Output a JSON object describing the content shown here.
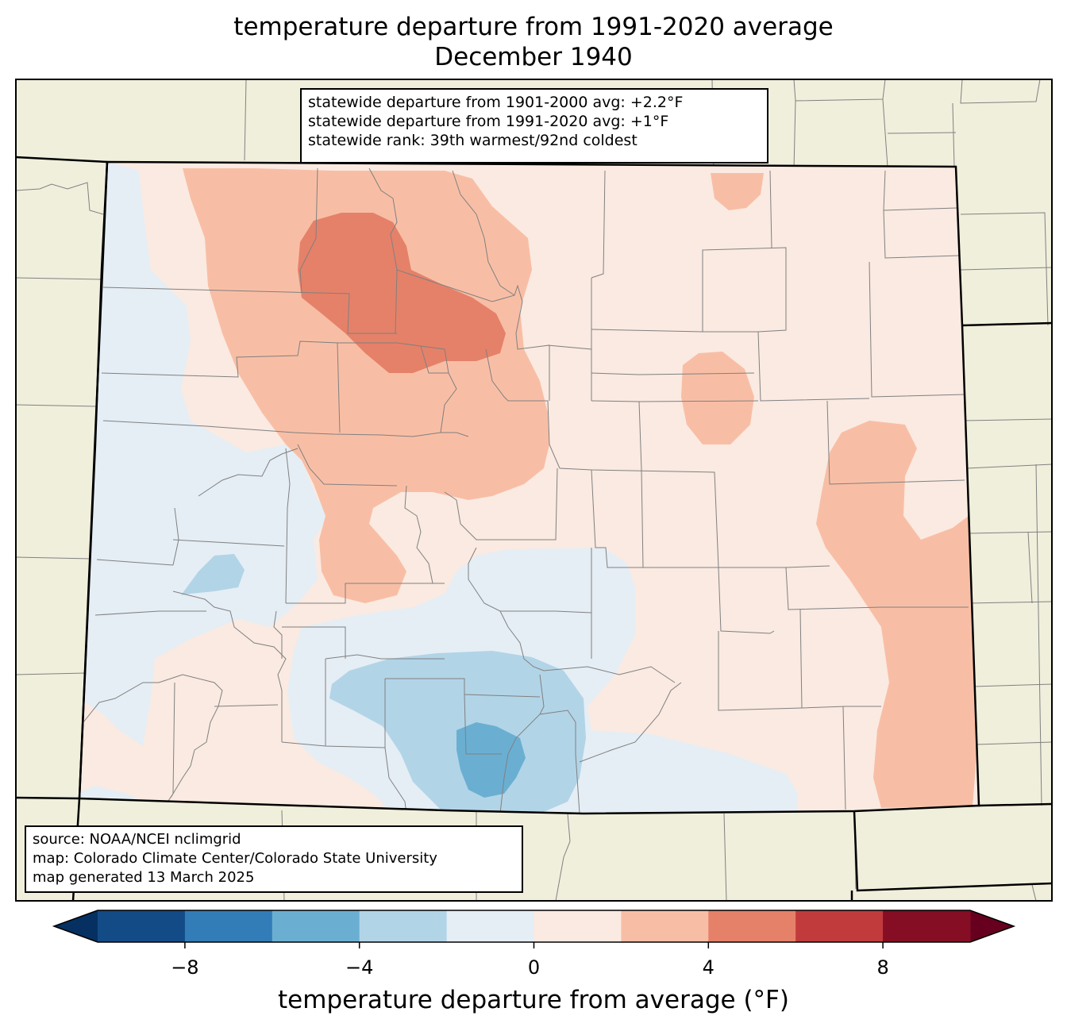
{
  "title": {
    "line1": "temperature departure from 1991-2020 average",
    "line2": "December 1940"
  },
  "stats": {
    "line1": "statewide departure from 1901-2000 avg: +2.2°F",
    "line2": "statewide departure from 1991-2020 avg: +1°F",
    "line3": "statewide rank: 39th warmest/92nd coldest"
  },
  "source": {
    "line1": "source: NOAA/NCEI nclimgrid",
    "line2": "map: Colorado Climate Center/Colorado State University",
    "line3": "map generated 13 March 2025"
  },
  "colorbar": {
    "label": "temperature departure from average (°F)",
    "ticks": [
      "−8",
      "−4",
      "0",
      "4",
      "8"
    ],
    "bins": [
      -10,
      -8,
      -6,
      -4,
      -2,
      0,
      2,
      4,
      6,
      8,
      10
    ],
    "colors": [
      "#134b87",
      "#327cb8",
      "#6aafd2",
      "#b2d4e7",
      "#e5eef5",
      "#faeae1",
      "#f8bea5",
      "#e58169",
      "#c13b3c",
      "#850d24"
    ],
    "under_color": "#053061",
    "over_color": "#67001f"
  },
  "colors": {
    "land": "#f0efdc",
    "state_border": "#000000",
    "county_border": "#808080"
  }
}
